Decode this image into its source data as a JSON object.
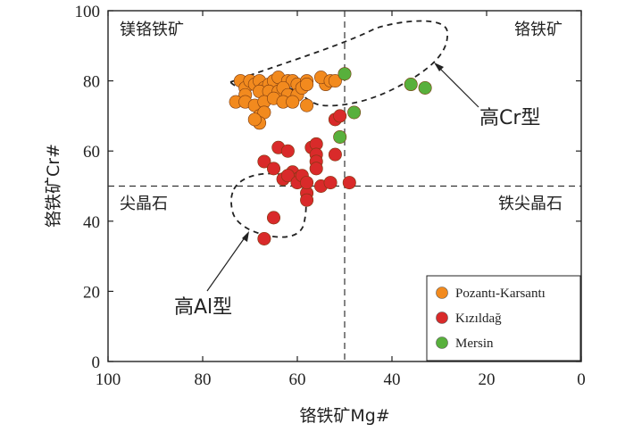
{
  "chart_data": {
    "type": "scatter",
    "xlabel": "铬铁矿Mg#",
    "ylabel": "铬铁矿Cr#",
    "xlim": [
      100,
      0
    ],
    "ylim": [
      0,
      100
    ],
    "x_ticks": [
      "100",
      "80",
      "60",
      "40",
      "20",
      "0"
    ],
    "y_ticks": [
      "0",
      "20",
      "40",
      "60",
      "80",
      "100"
    ],
    "divider_x": 50,
    "divider_y": 50,
    "region_labels": {
      "top_left": "镁铬铁矿",
      "top_right": "铬铁矿",
      "bottom_left": "尖晶石",
      "bottom_right": "铁尖晶石"
    },
    "annotations": {
      "high_cr": "高Cr型",
      "high_al": "高Al型"
    },
    "legend_position": "bottom-right",
    "series": [
      {
        "name": "Pozantı-Karsantı",
        "color": "#f28a1e",
        "points": [
          [
            72,
            80
          ],
          [
            71,
            78
          ],
          [
            71,
            76
          ],
          [
            70,
            80
          ],
          [
            69,
            79
          ],
          [
            68,
            80
          ],
          [
            67,
            78
          ],
          [
            66,
            79
          ],
          [
            65,
            80
          ],
          [
            64,
            81
          ],
          [
            62,
            80
          ],
          [
            61,
            80
          ],
          [
            60,
            79
          ],
          [
            58,
            80
          ],
          [
            68,
            77
          ],
          [
            66,
            77
          ],
          [
            64,
            77
          ],
          [
            63,
            78
          ],
          [
            62,
            76
          ],
          [
            60,
            76
          ],
          [
            59,
            78
          ],
          [
            58,
            79
          ],
          [
            73,
            74
          ],
          [
            71,
            74
          ],
          [
            69,
            73
          ],
          [
            67,
            74
          ],
          [
            65,
            75
          ],
          [
            63,
            74
          ],
          [
            61,
            74
          ],
          [
            58,
            73
          ],
          [
            68,
            70
          ],
          [
            67,
            71
          ],
          [
            68,
            68
          ],
          [
            69,
            69
          ],
          [
            54,
            79
          ],
          [
            55,
            81
          ],
          [
            53,
            80
          ],
          [
            52,
            80
          ]
        ]
      },
      {
        "name": "Kızıldağ",
        "color": "#d92a2a",
        "points": [
          [
            67,
            35
          ],
          [
            65,
            41
          ],
          [
            67,
            57
          ],
          [
            65,
            55
          ],
          [
            64,
            61
          ],
          [
            62,
            60
          ],
          [
            61,
            54
          ],
          [
            63,
            52
          ],
          [
            60,
            52
          ],
          [
            62,
            53
          ],
          [
            60,
            51
          ],
          [
            59,
            53
          ],
          [
            58,
            48
          ],
          [
            58,
            46
          ],
          [
            57,
            61
          ],
          [
            56,
            62
          ],
          [
            56,
            59
          ],
          [
            56,
            57
          ],
          [
            56,
            55
          ],
          [
            58,
            51
          ],
          [
            55,
            50
          ],
          [
            53,
            51
          ],
          [
            52,
            59
          ],
          [
            52,
            69
          ],
          [
            51,
            70
          ],
          [
            49,
            51
          ]
        ]
      },
      {
        "name": "Mersin",
        "color": "#58b03c",
        "points": [
          [
            50,
            82
          ],
          [
            48,
            71
          ],
          [
            51,
            64
          ],
          [
            36,
            79
          ],
          [
            33,
            78
          ]
        ]
      }
    ]
  }
}
